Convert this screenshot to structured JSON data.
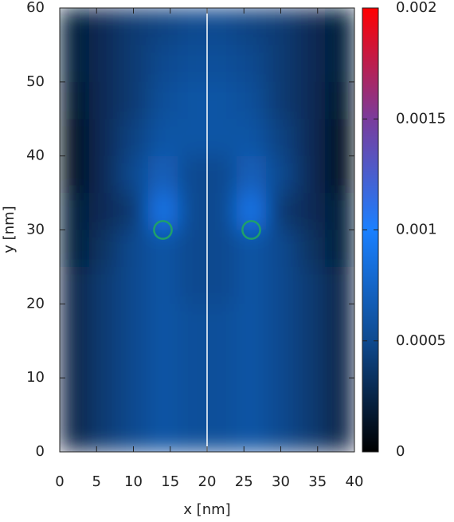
{
  "chart_data": {
    "type": "heatmap",
    "xlabel": "x [nm]",
    "ylabel": "y [nm]",
    "xlim": [
      0,
      40
    ],
    "ylim": [
      0,
      60
    ],
    "xticks": [
      0,
      5,
      10,
      15,
      20,
      25,
      30,
      35,
      40
    ],
    "yticks": [
      0,
      10,
      20,
      30,
      40,
      50,
      60
    ],
    "zlim": [
      0,
      0.002
    ],
    "zticks": [
      0,
      0.0005,
      0.001,
      0.0015,
      0.002
    ],
    "colormap": [
      {
        "value": 0,
        "color": "#000000"
      },
      {
        "value": 0.0005,
        "color": "#0f4a8f"
      },
      {
        "value": 0.001,
        "color": "#1a80ff"
      },
      {
        "value": 0.0015,
        "color": "#7a3c9c"
      },
      {
        "value": 0.002,
        "color": "#ff0000"
      }
    ],
    "x": [
      2,
      6,
      10,
      14,
      18,
      22,
      26,
      30,
      34,
      38
    ],
    "y": [
      57.5,
      52.5,
      47.5,
      42.5,
      37.5,
      32.5,
      27.5,
      22.5,
      17.5,
      12.5,
      7.5,
      2.5
    ],
    "z": [
      [
        0.0002,
        0.0003,
        0.0004,
        0.00045,
        0.0005,
        0.0005,
        0.00045,
        0.0004,
        0.0003,
        0.0002
      ],
      [
        0.0002,
        0.0003,
        0.0004,
        0.0005,
        0.00055,
        0.00055,
        0.0005,
        0.0004,
        0.0003,
        0.0002
      ],
      [
        0.00015,
        0.0003,
        0.0004,
        0.00055,
        0.0006,
        0.0006,
        0.00055,
        0.0004,
        0.0003,
        0.00015
      ],
      [
        0.0001,
        0.0003,
        0.00045,
        0.0006,
        0.0006,
        0.0006,
        0.0006,
        0.00045,
        0.0003,
        0.0001
      ],
      [
        0.0001,
        0.0003,
        0.0005,
        0.0007,
        0.0005,
        0.0005,
        0.0007,
        0.0005,
        0.0003,
        0.0001
      ],
      [
        0.0002,
        0.0003,
        0.0004,
        0.0009,
        0.0005,
        0.0005,
        0.0009,
        0.0004,
        0.0003,
        0.0002
      ],
      [
        0.0002,
        0.00035,
        0.0005,
        0.0006,
        0.0005,
        0.0005,
        0.0006,
        0.0005,
        0.00035,
        0.0002
      ],
      [
        0.00025,
        0.0004,
        0.0005,
        0.0006,
        0.0005,
        0.0005,
        0.0006,
        0.0005,
        0.0004,
        0.00025
      ],
      [
        0.00025,
        0.0004,
        0.0005,
        0.0006,
        0.00055,
        0.00055,
        0.0006,
        0.0005,
        0.0004,
        0.00025
      ],
      [
        0.00025,
        0.0004,
        0.0005,
        0.0006,
        0.00055,
        0.00055,
        0.0006,
        0.0005,
        0.0004,
        0.00025
      ],
      [
        0.00025,
        0.0004,
        0.0005,
        0.0006,
        0.00055,
        0.00055,
        0.0006,
        0.0005,
        0.0004,
        0.00025
      ],
      [
        0.00025,
        0.0004,
        0.0005,
        0.0006,
        0.00055,
        0.00055,
        0.0006,
        0.0005,
        0.0004,
        0.00025
      ]
    ],
    "vline": 20,
    "vline_color": "#ffffff",
    "circles": {
      "x": [
        14,
        26
      ],
      "y": [
        30,
        30
      ],
      "r": 1.2,
      "color": "#1fa06a"
    }
  }
}
